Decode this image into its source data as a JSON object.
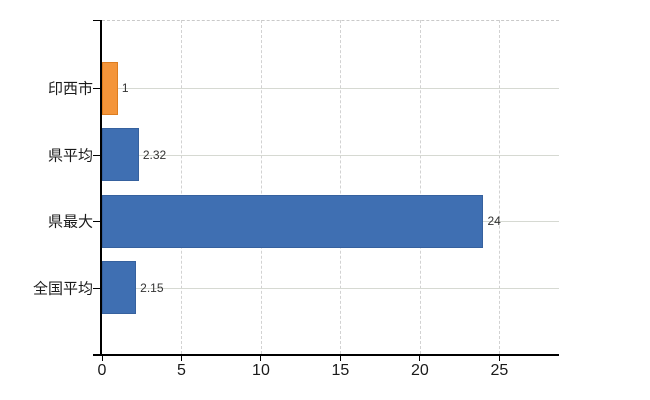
{
  "chart_data": {
    "type": "bar",
    "orientation": "horizontal",
    "title": "",
    "categories": [
      "印西市",
      "県平均",
      "県最大",
      "全国平均"
    ],
    "values": [
      1,
      2.32,
      24,
      2.15
    ],
    "value_labels": [
      "1",
      "2.32",
      "24",
      "2.15"
    ],
    "bar_colors": [
      "#f4953a",
      "#3f6fb2",
      "#3f6fb2",
      "#3f6fb2"
    ],
    "bar_border_colors": [
      "#dd7d20",
      "#36619e",
      "#36619e",
      "#36619e"
    ],
    "x_ticks": [
      0,
      5,
      10,
      15,
      20,
      25
    ],
    "x_tick_labels": [
      "0",
      "5",
      "10",
      "15",
      "20",
      "25"
    ],
    "xlim": [
      0,
      28.75
    ],
    "grid": true,
    "legend": false,
    "colors": {
      "background": "#ffffff",
      "axis": "#000000",
      "grid_horizontal": "#d6d9d2",
      "grid_vertical": "#d2d2d2",
      "plot_top_border": "#c9c9c9",
      "category_text": "#1a1a1a",
      "tick_text": "#1a1a1a",
      "value_text": "#333333",
      "highlight_bar": "#f4953a",
      "default_bar": "#3f6fb2"
    }
  }
}
